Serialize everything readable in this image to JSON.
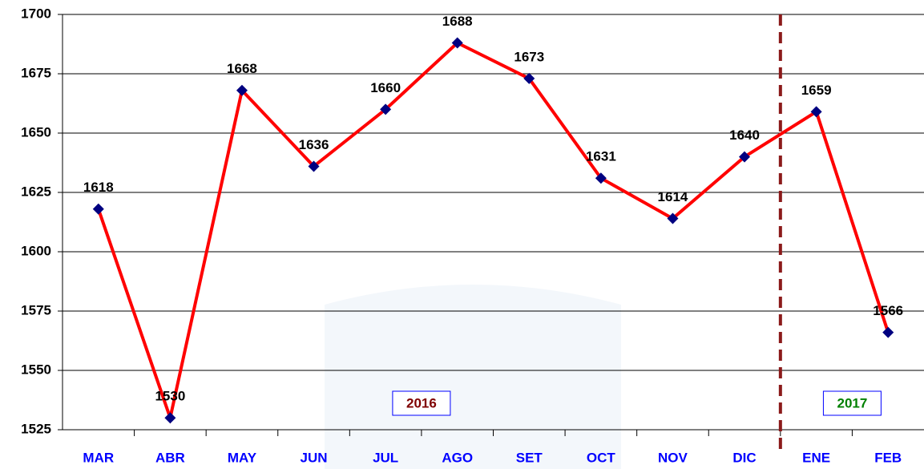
{
  "chart_data": {
    "type": "line",
    "categories": [
      "MAR",
      "ABR",
      "MAY",
      "JUN",
      "JUL",
      "AGO",
      "SET",
      "OCT",
      "NOV",
      "DIC",
      "ENE",
      "FEB"
    ],
    "series": [
      {
        "color": "#ff0000",
        "marker_color": "#000080",
        "values": [
          1618,
          1530,
          1668,
          1636,
          1660,
          1688,
          1673,
          1631,
          1614,
          1640,
          1659,
          1566
        ]
      }
    ],
    "ylim": [
      1525,
      1700
    ],
    "yticks": [
      1525,
      1550,
      1575,
      1600,
      1625,
      1650,
      1675,
      1700
    ],
    "grid": true,
    "annotations": [
      {
        "text": "2016",
        "color": "#7f0000"
      },
      {
        "text": "2017",
        "color": "#008000"
      }
    ],
    "divider_color": "#8b1a1a"
  }
}
